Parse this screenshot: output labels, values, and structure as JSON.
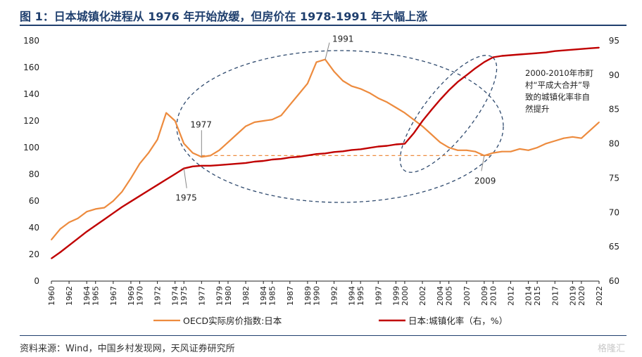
{
  "title": "图 1：日本城镇化进程从 1976 年开始放缓，但房价在 1978-1991 年大幅上涨",
  "source": "资料来源：Wind，中国乡村发现网，天风证券研究所",
  "watermark": "格隆汇",
  "chart_data": {
    "type": "line",
    "x": [
      1960,
      1961,
      1962,
      1963,
      1964,
      1965,
      1966,
      1967,
      1968,
      1969,
      1970,
      1971,
      1972,
      1973,
      1974,
      1975,
      1976,
      1977,
      1978,
      1979,
      1980,
      1981,
      1982,
      1983,
      1984,
      1985,
      1986,
      1987,
      1988,
      1989,
      1990,
      1991,
      1992,
      1993,
      1994,
      1995,
      1996,
      1997,
      1998,
      1999,
      2000,
      2001,
      2002,
      2003,
      2004,
      2005,
      2006,
      2007,
      2008,
      2009,
      2010,
      2011,
      2012,
      2013,
      2014,
      2015,
      2016,
      2017,
      2018,
      2019,
      2020,
      2021,
      2022
    ],
    "xtick_labels": [
      "1960",
      "1962",
      "1964",
      "1965",
      "1967",
      "1969",
      "1970",
      "1972",
      "1974",
      "1975",
      "1977",
      "1979",
      "1980",
      "1982",
      "1984",
      "1985",
      "1987",
      "1989",
      "1990",
      "1992",
      "1994",
      "1995",
      "1997",
      "1999",
      "2000",
      "2002",
      "2004",
      "2005",
      "2007",
      "2009",
      "2010",
      "2012",
      "2014",
      "2015",
      "2017",
      "2019",
      "2020",
      "2022"
    ],
    "xtick_years": [
      1960,
      1962,
      1964,
      1965,
      1967,
      1969,
      1970,
      1972,
      1974,
      1975,
      1977,
      1979,
      1980,
      1982,
      1984,
      1985,
      1987,
      1989,
      1990,
      1992,
      1994,
      1995,
      1997,
      1999,
      2000,
      2002,
      2004,
      2005,
      2007,
      2009,
      2010,
      2012,
      2014,
      2015,
      2017,
      2019,
      2020,
      2022
    ],
    "y_left_lim": [
      0,
      180
    ],
    "y_left_ticks": [
      0,
      20,
      40,
      60,
      80,
      100,
      120,
      140,
      160,
      180
    ],
    "y_right_lim": [
      60,
      95
    ],
    "y_right_ticks": [
      60,
      65,
      70,
      75,
      80,
      85,
      90,
      95
    ],
    "series": [
      {
        "name": "OECD实际房价指数:日本",
        "axis": "left",
        "color": "#ed8b3e",
        "values": [
          31,
          39,
          44,
          47,
          52,
          54,
          55,
          60,
          67,
          77,
          88,
          96,
          106,
          126,
          120,
          103,
          96,
          93,
          94,
          98,
          104,
          110,
          116,
          119,
          120,
          121,
          124,
          132,
          140,
          148,
          164,
          166,
          157,
          150,
          146,
          144,
          141,
          137,
          134,
          130,
          126,
          121,
          116,
          110,
          104,
          100,
          98,
          98,
          97,
          94,
          96,
          97,
          97,
          99,
          98,
          100,
          103,
          105,
          107,
          108,
          107,
          113,
          119
        ]
      },
      {
        "name": "日本:城镇化率（右，%）",
        "axis": "right",
        "color": "#c00000",
        "values": [
          63.3,
          64.2,
          65.2,
          66.2,
          67.2,
          68.1,
          69.0,
          69.9,
          70.8,
          71.6,
          72.4,
          73.2,
          74.0,
          74.8,
          75.6,
          76.4,
          76.7,
          76.8,
          76.8,
          76.9,
          77.0,
          77.1,
          77.2,
          77.4,
          77.5,
          77.7,
          77.8,
          78.0,
          78.1,
          78.3,
          78.5,
          78.6,
          78.8,
          78.9,
          79.1,
          79.2,
          79.4,
          79.6,
          79.7,
          79.9,
          80.0,
          81.5,
          83.3,
          84.9,
          86.4,
          87.8,
          89.0,
          90.0,
          91.0,
          91.9,
          92.6,
          92.8,
          92.9,
          93.0,
          93.1,
          93.2,
          93.3,
          93.5,
          93.6,
          93.7,
          93.8,
          93.9,
          94.0
        ]
      }
    ],
    "annotations": [
      {
        "text": "1991"
      },
      {
        "text": "1977"
      },
      {
        "text": "1975"
      },
      {
        "text": "2009"
      },
      {
        "text": "2000-2010年市町村“平成大合并”导致的城镇化率非自然提升"
      }
    ],
    "annotation_lines": [
      "2000-2010年市町",
      "村“平成大合并”导",
      "致的城镇化率非自",
      "然提升"
    ],
    "reference_line_value": 94,
    "legend_position": "bottom",
    "grid": false
  }
}
